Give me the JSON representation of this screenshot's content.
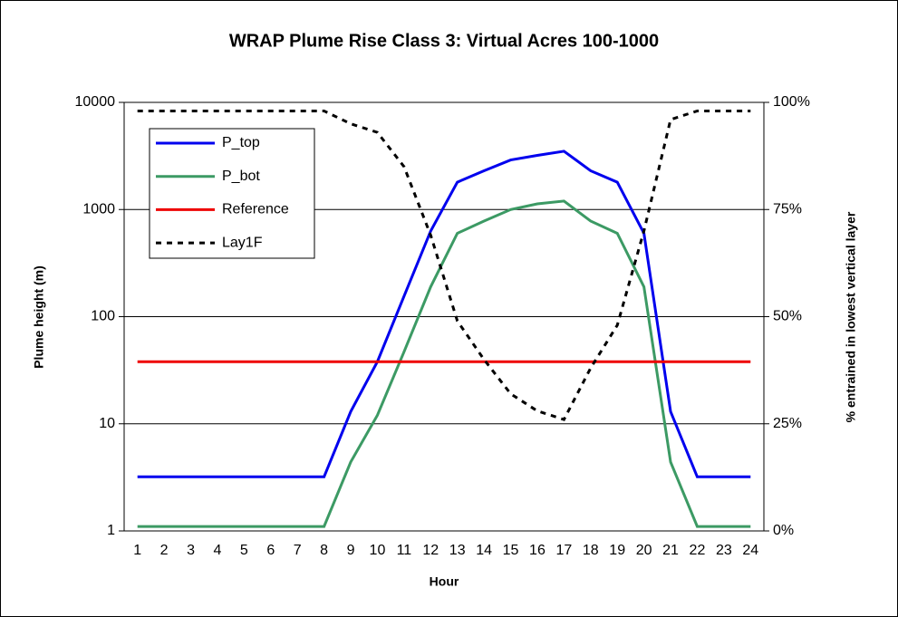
{
  "chart_data": {
    "type": "line",
    "title": "WRAP Plume Rise Class 3: Virtual Acres 100-1000",
    "x_label": "Hour",
    "y_label": "Plume height (m)",
    "y2_label": "% entrained in lowest vertical layer",
    "categories": [
      "1",
      "2",
      "3",
      "4",
      "5",
      "6",
      "7",
      "8",
      "9",
      "10",
      "11",
      "12",
      "13",
      "14",
      "15",
      "16",
      "17",
      "18",
      "19",
      "20",
      "21",
      "22",
      "23",
      "24"
    ],
    "series": [
      {
        "name": "P_top",
        "color": "#0000ee",
        "values": [
          3.2,
          3.2,
          3.2,
          3.2,
          3.2,
          3.2,
          3.2,
          3.2,
          13,
          38,
          155,
          630,
          1800,
          2300,
          2900,
          3200,
          3500,
          2300,
          1800,
          600,
          13,
          3.2,
          3.2,
          3.2
        ]
      },
      {
        "name": "P_bot",
        "color": "#3c9a64",
        "values": [
          1.1,
          1.1,
          1.1,
          1.1,
          1.1,
          1.1,
          1.1,
          1.1,
          4.4,
          12,
          47,
          190,
          600,
          780,
          1000,
          1130,
          1200,
          780,
          600,
          190,
          4.4,
          1.1,
          1.1,
          1.1
        ]
      },
      {
        "name": "Reference",
        "color": "#ee0000",
        "values": [
          38,
          38,
          38,
          38,
          38,
          38,
          38,
          38,
          38,
          38,
          38,
          38,
          38,
          38,
          38,
          38,
          38,
          38,
          38,
          38,
          38,
          38,
          38,
          38
        ]
      },
      {
        "name": "Lay1F",
        "color": "#000000",
        "dashed": true,
        "axis": "y2",
        "values": [
          98,
          98,
          98,
          98,
          98,
          98,
          98,
          98,
          95,
          93,
          85,
          69,
          49,
          40,
          32,
          28,
          26,
          38,
          48,
          70,
          96,
          98,
          98,
          98
        ]
      }
    ],
    "ylim": [
      1,
      10000
    ],
    "yticks": [
      1,
      10,
      100,
      1000,
      10000
    ],
    "log_scale": true,
    "y2lim": [
      0,
      100
    ],
    "y2ticks": [
      {
        "value": 0,
        "label": "0%"
      },
      {
        "value": 25,
        "label": "25%"
      },
      {
        "value": 50,
        "label": "50%"
      },
      {
        "value": 75,
        "label": "75%"
      },
      {
        "value": 100,
        "label": "100%"
      }
    ],
    "grid": true,
    "legend": "upper left"
  }
}
